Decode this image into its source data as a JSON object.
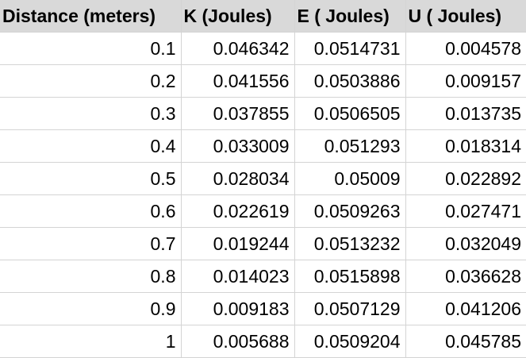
{
  "table": {
    "headers": [
      "Distance (meters)",
      "K (Joules)",
      "E ( Joules)",
      "U ( Joules)"
    ],
    "rows": [
      [
        "0.1",
        "0.046342",
        "0.0514731",
        "0.004578"
      ],
      [
        "0.2",
        "0.041556",
        "0.0503886",
        "0.009157"
      ],
      [
        "0.3",
        "0.037855",
        "0.0506505",
        "0.013735"
      ],
      [
        "0.4",
        "0.033009",
        "0.051293",
        "0.018314"
      ],
      [
        "0.5",
        "0.028034",
        "0.05009",
        "0.022892"
      ],
      [
        "0.6",
        "0.022619",
        "0.0509263",
        "0.027471"
      ],
      [
        "0.7",
        "0.019244",
        "0.0513232",
        "0.032049"
      ],
      [
        "0.8",
        "0.014023",
        "0.0515898",
        "0.036628"
      ],
      [
        "0.9",
        "0.009183",
        "0.0507129",
        "0.041206"
      ],
      [
        "1",
        "0.005688",
        "0.0509204",
        "0.045785"
      ]
    ]
  },
  "colors": {
    "header_background": "#d9d9d9",
    "gridline": "#d4d4d4"
  }
}
